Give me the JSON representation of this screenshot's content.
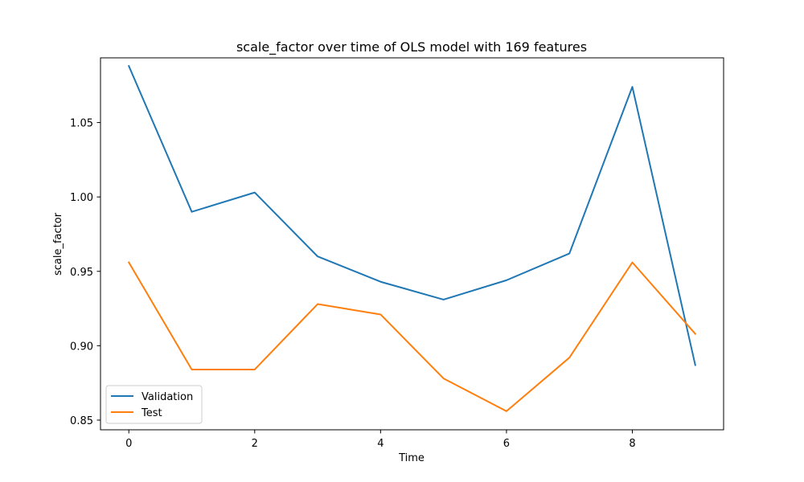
{
  "chart_data": {
    "type": "line",
    "title": "scale_factor over time of OLS model with 169 features",
    "xlabel": "Time",
    "ylabel": "scale_factor",
    "x": [
      0,
      1,
      2,
      3,
      4,
      5,
      6,
      7,
      8,
      9
    ],
    "xlim": [
      -0.45,
      9.45
    ],
    "ylim": [
      0.8435,
      1.0935
    ],
    "xticks": [
      0,
      2,
      4,
      6,
      8
    ],
    "yticks": [
      0.85,
      0.9,
      0.95,
      1.0,
      1.05
    ],
    "ytick_labels": [
      "0.85",
      "0.90",
      "0.95",
      "1.00",
      "1.05"
    ],
    "grid": false,
    "legend_position": "lower-left",
    "series": [
      {
        "name": "Validation",
        "color": "#1f77b4",
        "values": [
          1.088,
          0.99,
          1.003,
          0.96,
          0.943,
          0.931,
          0.944,
          0.962,
          1.074,
          0.887
        ]
      },
      {
        "name": "Test",
        "color": "#ff7f0e",
        "values": [
          0.956,
          0.884,
          0.884,
          0.928,
          0.921,
          0.878,
          0.856,
          0.892,
          0.956,
          0.908
        ]
      }
    ]
  }
}
